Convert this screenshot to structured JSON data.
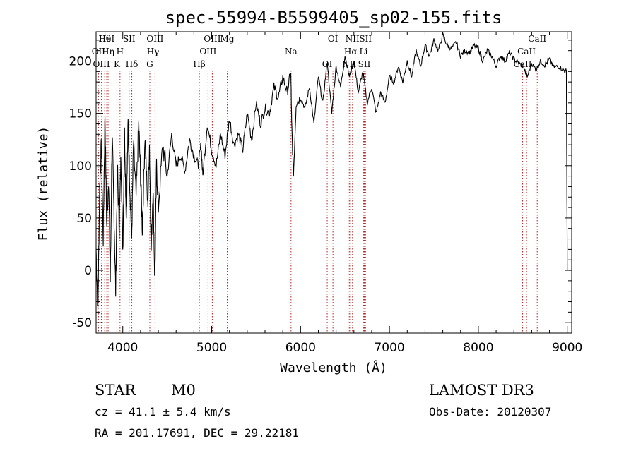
{
  "chart_data": {
    "type": "line",
    "title": "spec-55994-B5599405_sp02-155.fits",
    "xlabel": "Wavelength (Å)",
    "ylabel": "Flux (relative)",
    "xlim": [
      3700,
      9050
    ],
    "ylim": [
      -60,
      228
    ],
    "xticks": [
      4000,
      5000,
      6000,
      7000,
      8000,
      9000
    ],
    "yticks": [
      -50,
      0,
      50,
      100,
      150,
      200
    ],
    "series": [
      {
        "name": "flux",
        "x": [
          3700,
          3720,
          3740,
          3760,
          3780,
          3800,
          3820,
          3840,
          3860,
          3880,
          3900,
          3920,
          3940,
          3960,
          3980,
          4000,
          4020,
          4040,
          4060,
          4080,
          4100,
          4120,
          4150,
          4180,
          4200,
          4220,
          4250,
          4280,
          4300,
          4320,
          4340,
          4360,
          4380,
          4400,
          4450,
          4500,
          4550,
          4600,
          4650,
          4700,
          4750,
          4800,
          4850,
          4880,
          4900,
          4950,
          5000,
          5050,
          5100,
          5150,
          5200,
          5250,
          5300,
          5350,
          5400,
          5450,
          5500,
          5550,
          5600,
          5650,
          5700,
          5750,
          5800,
          5850,
          5890,
          5900,
          5920,
          5950,
          6000,
          6050,
          6100,
          6150,
          6200,
          6250,
          6300,
          6350,
          6400,
          6450,
          6500,
          6550,
          6600,
          6650,
          6700,
          6750,
          6800,
          6850,
          6900,
          6950,
          7000,
          7050,
          7100,
          7150,
          7200,
          7250,
          7300,
          7350,
          7400,
          7450,
          7500,
          7550,
          7600,
          7650,
          7700,
          7750,
          7800,
          7850,
          7900,
          7950,
          8000,
          8050,
          8100,
          8150,
          8200,
          8250,
          8300,
          8350,
          8400,
          8450,
          8500,
          8550,
          8600,
          8650,
          8700,
          8750,
          8800,
          8850,
          8900,
          8950,
          8990,
          9000
        ],
        "y": [
          20,
          -40,
          80,
          120,
          30,
          150,
          40,
          90,
          -10,
          130,
          60,
          -20,
          100,
          40,
          110,
          20,
          130,
          50,
          140,
          80,
          30,
          120,
          70,
          140,
          90,
          40,
          130,
          60,
          120,
          20,
          80,
          -10,
          100,
          60,
          120,
          90,
          130,
          100,
          110,
          95,
          125,
          110,
          100,
          120,
          90,
          140,
          115,
          100,
          130,
          110,
          145,
          120,
          130,
          115,
          150,
          125,
          160,
          140,
          155,
          150,
          175,
          165,
          185,
          170,
          190,
          140,
          90,
          160,
          165,
          155,
          175,
          140,
          185,
          160,
          200,
          150,
          195,
          175,
          205,
          185,
          200,
          170,
          190,
          160,
          175,
          150,
          170,
          160,
          185,
          180,
          195,
          180,
          200,
          185,
          210,
          195,
          215,
          205,
          220,
          210,
          225,
          215,
          212,
          218,
          205,
          210,
          208,
          215,
          212,
          200,
          210,
          205,
          195,
          205,
          200,
          208,
          202,
          198,
          195,
          185,
          198,
          192,
          200,
          196,
          202,
          194,
          195,
          192,
          190,
          0
        ]
      }
    ],
    "emission_lines": [
      {
        "label": "Hθ",
        "x": 3797
      },
      {
        "label": "OII",
        "x": 3727
      },
      {
        "label": "OIII",
        "x": 3760
      },
      {
        "label": "HeI",
        "x": 3820
      },
      {
        "label": "Hη",
        "x": 3835
      },
      {
        "label": "K",
        "x": 3934
      },
      {
        "label": "SII",
        "x": 4072
      },
      {
        "label": "H",
        "x": 3969
      },
      {
        "label": "Hδ",
        "x": 4102
      },
      {
        "label": "OIII",
        "x": 4363
      },
      {
        "label": "Hγ",
        "x": 4340
      },
      {
        "label": "G",
        "x": 4304
      },
      {
        "label": "OIII",
        "x": 5007
      },
      {
        "label": "OIII",
        "x": 4959
      },
      {
        "label": "Hβ",
        "x": 4861
      },
      {
        "label": "Mg",
        "x": 5175
      },
      {
        "label": "Na",
        "x": 5893
      },
      {
        "label": "OI",
        "x": 6300
      },
      {
        "label": "OI",
        "x": 6364
      },
      {
        "label": "Hα",
        "x": 6563
      },
      {
        "label": "SII",
        "x": 6717
      },
      {
        "label": "NII",
        "x": 6584
      },
      {
        "label": "Li",
        "x": 6708
      },
      {
        "label": "NII",
        "x": 6548
      },
      {
        "label": "SII",
        "x": 6731
      },
      {
        "label": "CaII",
        "x": 8542
      },
      {
        "label": "CaII",
        "x": 8498
      },
      {
        "label": "CaII",
        "x": 8662
      }
    ]
  },
  "info": {
    "object_class": "STAR",
    "subclass": "M0",
    "survey": "LAMOST DR3",
    "cz": "cz = 41.1 ± 5.4 km/s",
    "obs_date": "Obs-Date: 20120307",
    "coords": "RA = 201.17691, DEC =  29.22181"
  }
}
